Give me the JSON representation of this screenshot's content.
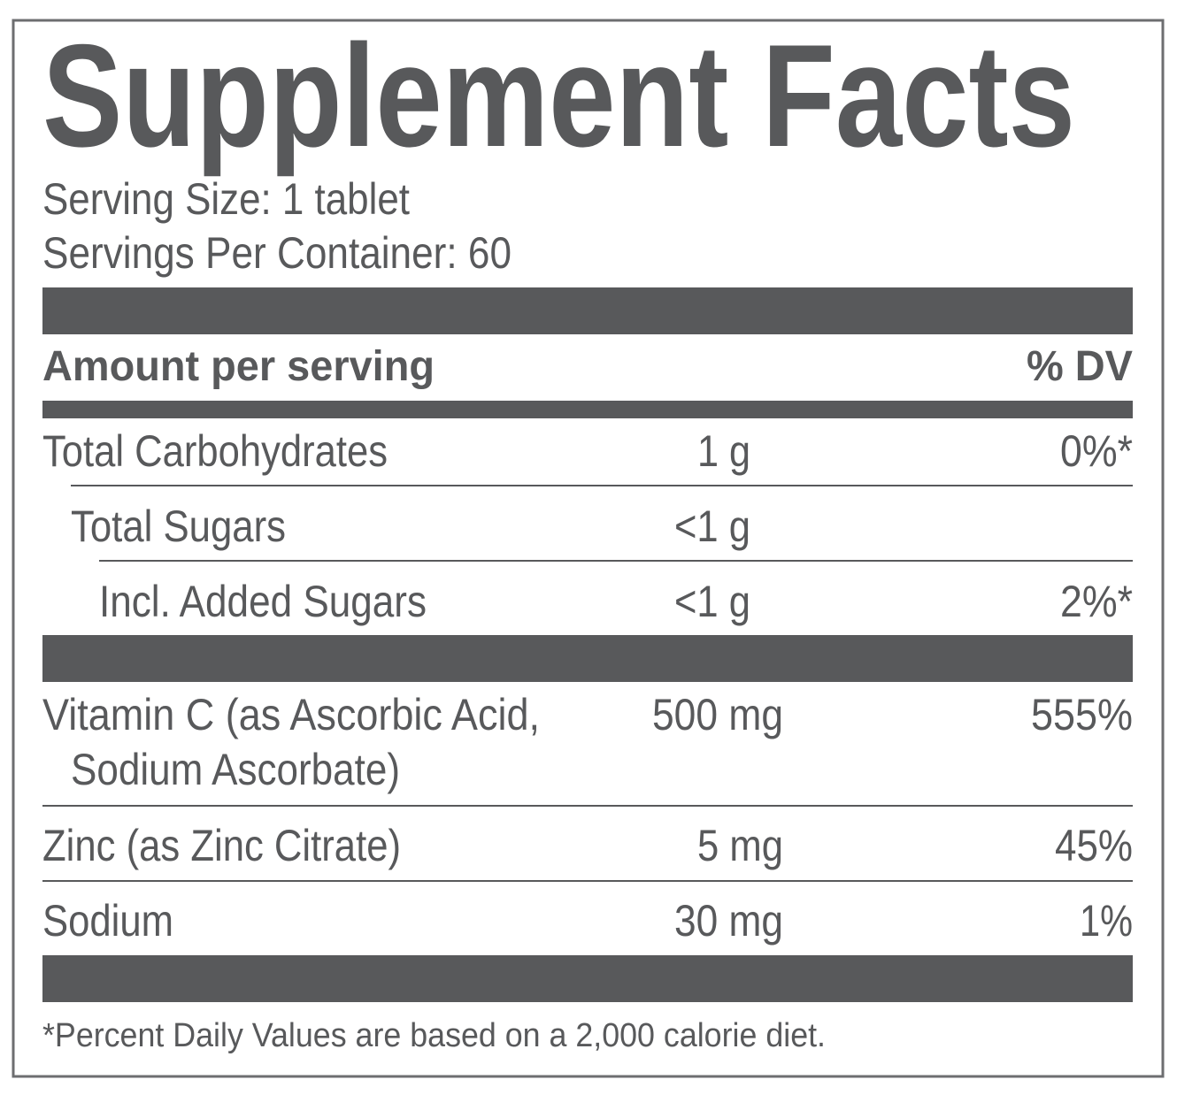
{
  "title": "Supplement Facts",
  "serving_size": "Serving Size: 1 tablet",
  "servings_per_container": "Servings Per Container: 60",
  "header": {
    "amount": "Amount per serving",
    "dv": "% DV"
  },
  "rows": [
    {
      "name": [
        "Total Carbohydrates"
      ],
      "amount": "1 g",
      "dv": "0%*"
    },
    {
      "name": [
        "Total Sugars"
      ],
      "amount": "<1 g"
    },
    {
      "name": [
        "Incl. Added Sugars"
      ],
      "amount": "<1 g",
      "dv": "2%*"
    },
    {
      "name": [
        "Vitamin C (as Ascorbic Acid,",
        "Sodium Ascorbate)"
      ],
      "amount": "500 mg",
      "dv": "555%"
    },
    {
      "name": [
        "Zinc (as Zinc Citrate)"
      ],
      "amount": "5 mg",
      "dv": "45%"
    },
    {
      "name": [
        "Sodium"
      ],
      "amount": "30 mg",
      "dv": "1%"
    }
  ],
  "footnote": "*Percent Daily Values are based on a 2,000 calorie diet."
}
